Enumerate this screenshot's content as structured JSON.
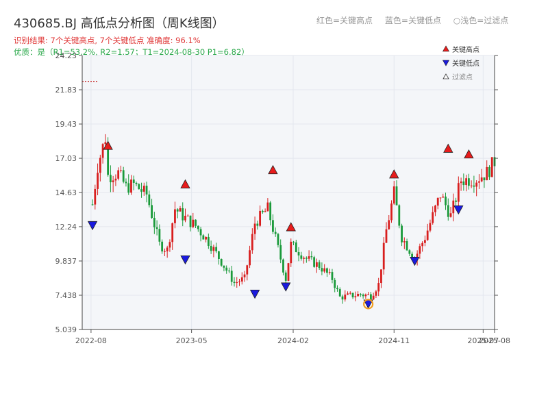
{
  "header": {
    "title": "430685.BJ 高低点分析图（周K线图）",
    "result_line": "识别结果: 7个关键高点, 7个关键低点   准确度: 96.1%",
    "quality_line": "优质：是（R1=53.2%, R2=1.57；T1=2024-08-30 P1=6.82）"
  },
  "top_legend": [
    {
      "label": "红色=关键高点"
    },
    {
      "label": "蓝色=关键低点"
    },
    {
      "label": "○浅色=过滤点"
    }
  ],
  "colors": {
    "up": "#d81e1e",
    "down": "#1a9a3a",
    "high_marker": "#e81c1c",
    "low_marker": "#1a1adf",
    "filtered_marker": "#f29d1d",
    "plot_bg": "#f4f6f9",
    "grid": "#e3e7ee"
  },
  "chart_data": {
    "type": "candlestick",
    "x_axis": {
      "type": "time",
      "start": "2022-07-08",
      "end": "2025-08-01",
      "ticks": [
        "2022-08",
        "2023-05",
        "2024-02",
        "2024-11",
        "2025-07",
        "2025-08"
      ]
    },
    "y_axis": {
      "min": 5.039,
      "max": 24.23,
      "ticks": [
        5.039,
        7.438,
        9.837,
        12.24,
        14.63,
        17.03,
        19.43,
        21.83,
        24.23
      ],
      "tick_labels": [
        "5.039",
        "7.438",
        "9.837",
        "12.24",
        "14.63",
        "17.03",
        "19.43",
        "21.83",
        "24.23"
      ]
    },
    "grid": true,
    "reference_level": 22.4,
    "anchors": [
      [
        "2022-08-05",
        13.8
      ],
      [
        "2022-08-19",
        16.5
      ],
      [
        "2022-09-09",
        18.5
      ],
      [
        "2022-09-16",
        15.8
      ],
      [
        "2022-10-14",
        16.0
      ],
      [
        "2022-11-04",
        15.0
      ],
      [
        "2022-11-25",
        15.2
      ],
      [
        "2022-12-30",
        14.5
      ],
      [
        "2023-02-03",
        11.0
      ],
      [
        "2023-02-24",
        10.6
      ],
      [
        "2023-03-17",
        13.5
      ],
      [
        "2023-04-07",
        13.0
      ],
      [
        "2023-05-12",
        12.3
      ],
      [
        "2023-06-16",
        11.2
      ],
      [
        "2023-07-21",
        9.8
      ],
      [
        "2023-08-25",
        8.3
      ],
      [
        "2023-09-22",
        8.6
      ],
      [
        "2023-10-20",
        12.5
      ],
      [
        "2023-11-24",
        13.5
      ],
      [
        "2023-12-29",
        10.0
      ],
      [
        "2024-01-12",
        8.6
      ],
      [
        "2024-01-26",
        11.0
      ],
      [
        "2024-03-08",
        10.0
      ],
      [
        "2024-04-12",
        9.5
      ],
      [
        "2024-05-17",
        8.6
      ],
      [
        "2024-06-07",
        7.3
      ],
      [
        "2024-08-02",
        7.5
      ],
      [
        "2024-08-30",
        7.4
      ],
      [
        "2024-09-20",
        8.2
      ],
      [
        "2024-10-11",
        12.0
      ],
      [
        "2024-11-01",
        14.6
      ],
      [
        "2024-11-22",
        11.5
      ],
      [
        "2024-12-27",
        10.0
      ],
      [
        "2025-01-24",
        11.5
      ],
      [
        "2025-03-07",
        14.5
      ],
      [
        "2025-04-04",
        13.0
      ],
      [
        "2025-05-02",
        15.5
      ],
      [
        "2025-06-13",
        15.6
      ],
      [
        "2025-07-11",
        16.0
      ],
      [
        "2025-08-01",
        16.8
      ]
    ],
    "key_highs": [
      {
        "date": "2022-09-16",
        "price": 17.5
      },
      {
        "date": "2023-04-14",
        "price": 14.8
      },
      {
        "date": "2023-12-08",
        "price": 15.8
      },
      {
        "date": "2024-01-26",
        "price": 11.8
      },
      {
        "date": "2024-11-01",
        "price": 15.5
      },
      {
        "date": "2025-03-28",
        "price": 17.3
      },
      {
        "date": "2025-05-23",
        "price": 16.9
      }
    ],
    "key_lows": [
      {
        "date": "2022-08-05",
        "price": 12.7
      },
      {
        "date": "2023-04-14",
        "price": 10.3
      },
      {
        "date": "2023-10-20",
        "price": 7.9
      },
      {
        "date": "2024-01-12",
        "price": 8.4
      },
      {
        "date": "2024-08-23",
        "price": 7.2
      },
      {
        "date": "2024-12-27",
        "price": 10.2
      },
      {
        "date": "2025-04-25",
        "price": 13.8
      }
    ],
    "filtered": [
      {
        "date": "2024-08-23",
        "price": 6.82
      }
    ],
    "legend": [
      {
        "label": "关键高点",
        "marker": "high"
      },
      {
        "label": "关键低点",
        "marker": "low"
      },
      {
        "label": "过滤点",
        "marker": "filtered"
      }
    ],
    "legend_position": "top-right"
  }
}
